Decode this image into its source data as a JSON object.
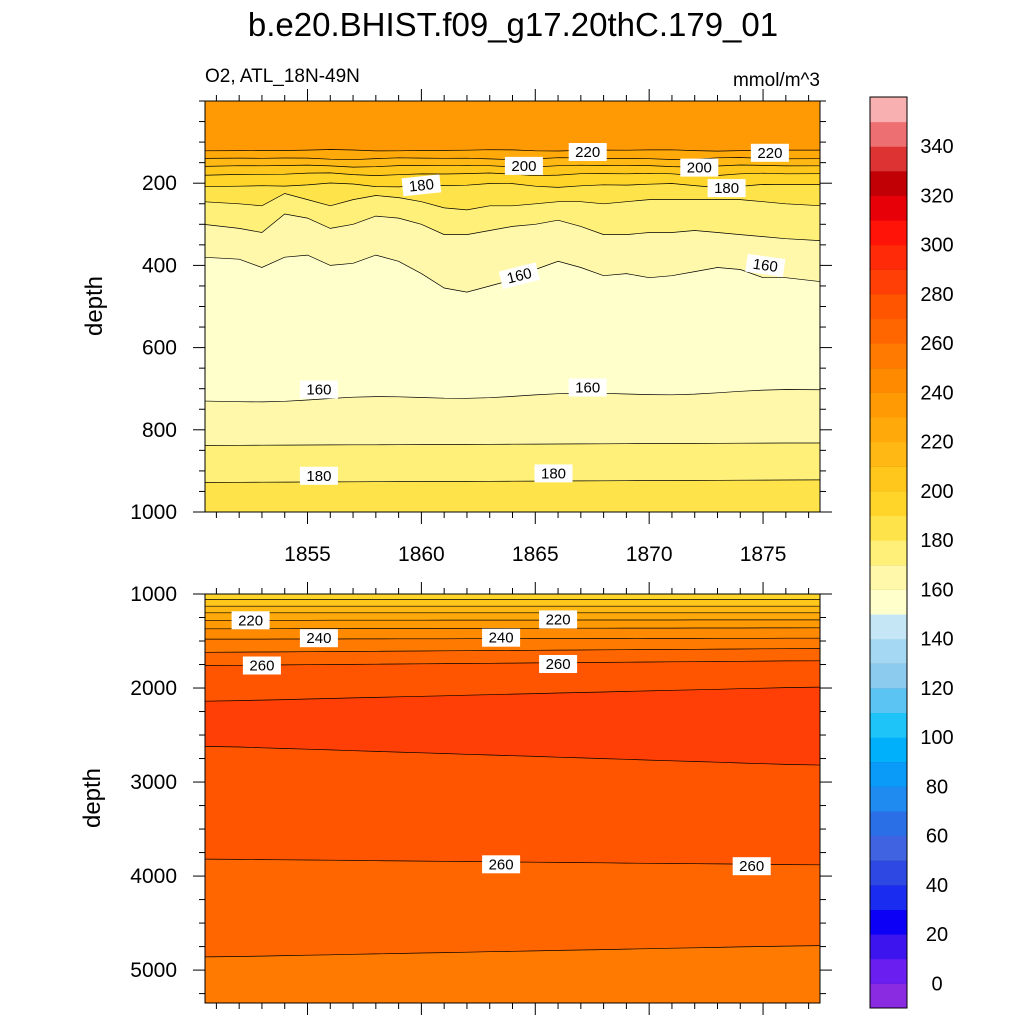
{
  "chart_data": {
    "type": "contour",
    "title": "b.e20.BHIST.f09_g17.20thC.179_01",
    "left_label": "O2, ATL_18N-49N",
    "right_label": "mmol/m^3",
    "ylabel": "depth",
    "x_ticks": [
      1855,
      1860,
      1865,
      1870,
      1875
    ],
    "xlim": [
      1850.5,
      1877.5
    ],
    "top_panel": {
      "ylim": [
        1000,
        0
      ],
      "y_ticks": [
        200,
        400,
        600,
        800,
        1000
      ],
      "contour_labels": [
        "220",
        "220",
        "200",
        "200",
        "180",
        "180",
        "160",
        "160",
        "160",
        "160",
        "180",
        "180"
      ]
    },
    "bottom_panel": {
      "ylim": [
        5350,
        1000
      ],
      "y_ticks": [
        1000,
        2000,
        3000,
        4000,
        5000
      ],
      "contour_labels": [
        "220",
        "220",
        "240",
        "240",
        "260",
        "260",
        "260",
        "260"
      ]
    },
    "colorbar": {
      "range": [
        -10,
        360
      ],
      "step": 10,
      "tick_labels": [
        "0",
        "20",
        "40",
        "60",
        "80",
        "100",
        "120",
        "140",
        "160",
        "180",
        "200",
        "220",
        "240",
        "260",
        "280",
        "300",
        "320",
        "340"
      ]
    }
  }
}
